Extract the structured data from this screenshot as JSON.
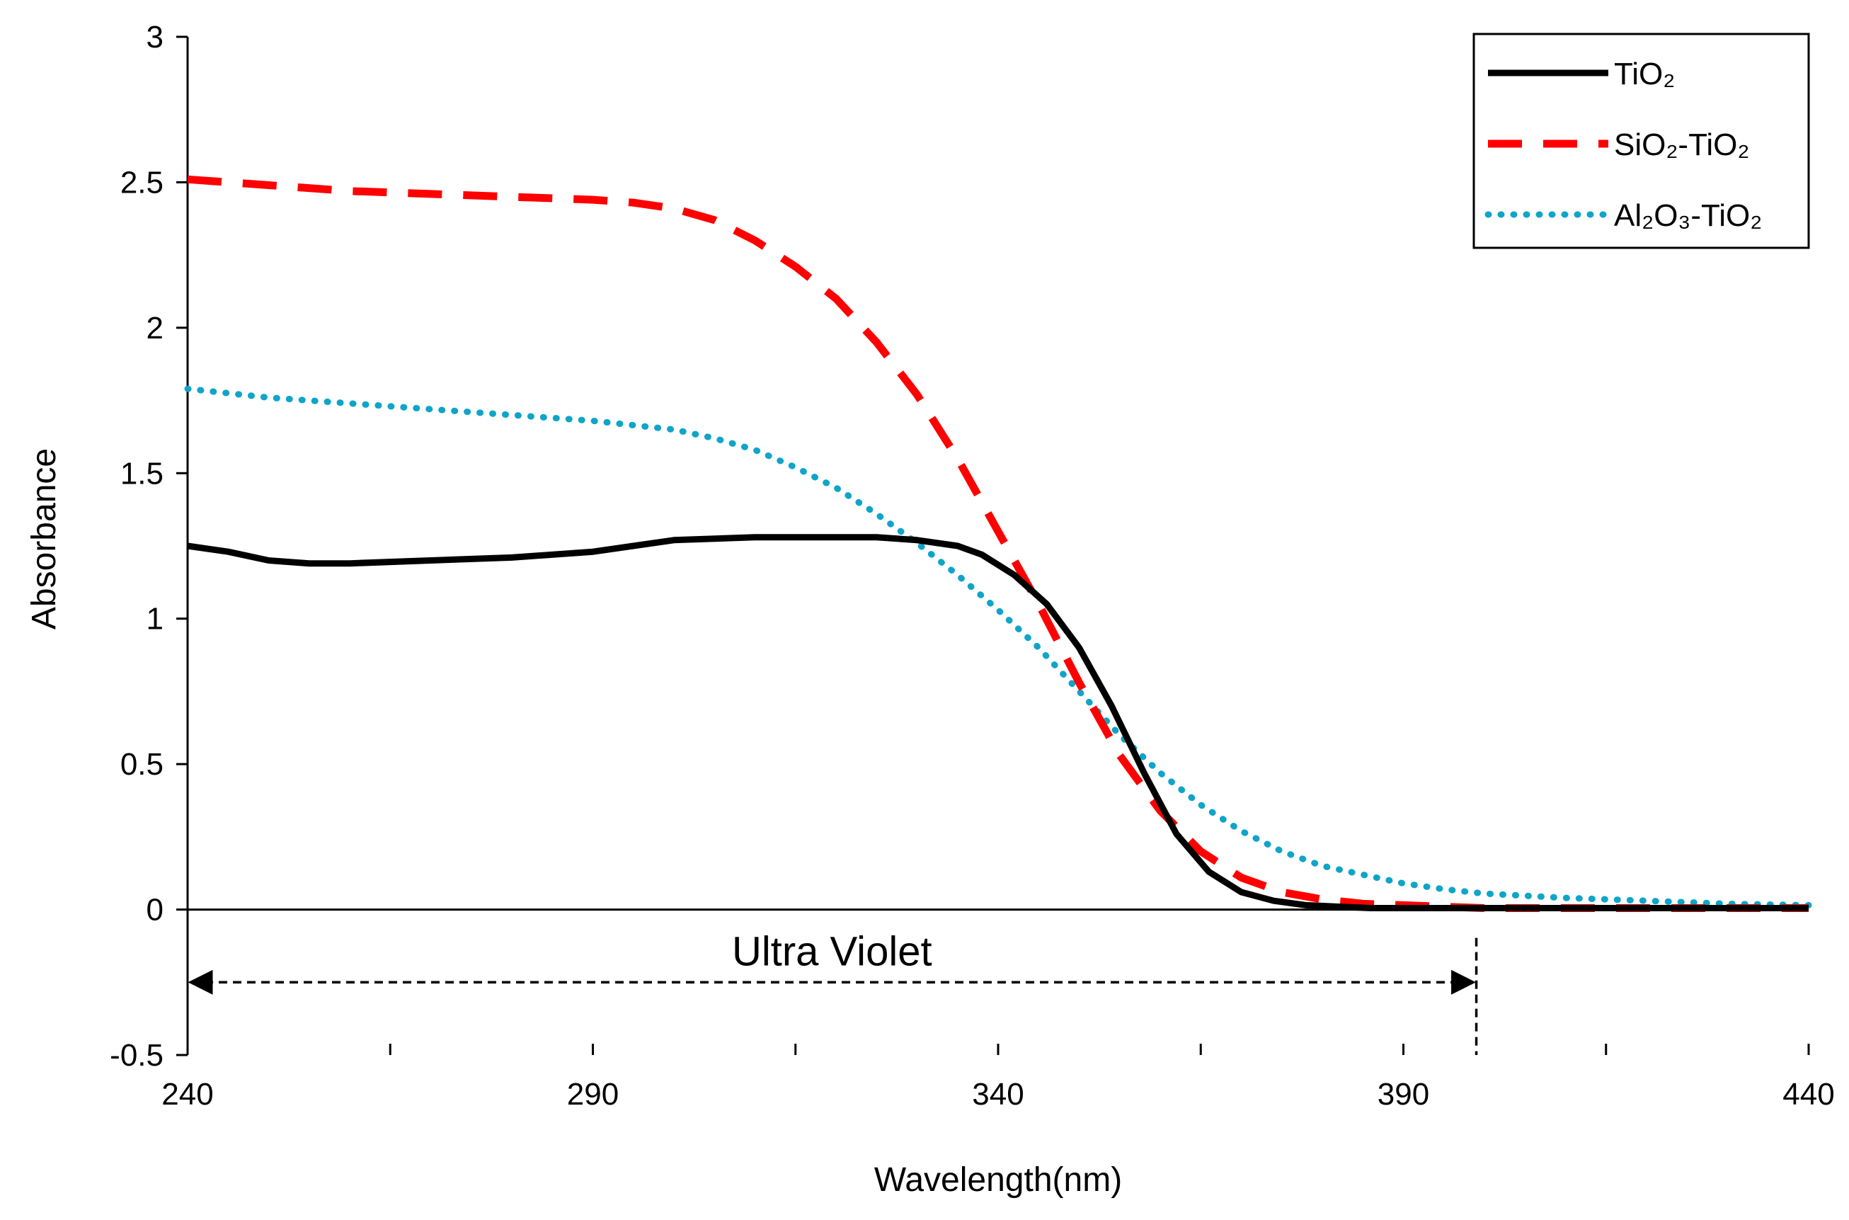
{
  "chart_data": {
    "type": "line",
    "xlabel": "Wavelength(nm)",
    "ylabel": "Absorbance",
    "xlim": [
      240,
      440
    ],
    "ylim": [
      -0.5,
      3
    ],
    "x_ticks": [
      240,
      290,
      340,
      390,
      440
    ],
    "x_minor_ticks": [
      265,
      315,
      365,
      415
    ],
    "y_ticks": [
      -0.5,
      0,
      0.5,
      1,
      1.5,
      2,
      2.5,
      3
    ],
    "y_tick_labels": [
      "-0.5",
      "0",
      "0.5",
      "1",
      "1.5",
      "2",
      "2.5",
      "3"
    ],
    "grid": false,
    "legend_position": "top-right",
    "legend": [
      "TiO₂",
      "SiO₂-TiO₂",
      "Al₂O₃-TiO₂"
    ],
    "series": [
      {
        "name": "TiO₂",
        "color": "#000000",
        "style": "solid",
        "x": [
          240,
          245,
          250,
          255,
          260,
          270,
          280,
          290,
          300,
          310,
          320,
          325,
          330,
          335,
          338,
          342,
          346,
          350,
          354,
          358,
          362,
          366,
          370,
          374,
          378,
          382,
          386,
          390,
          395,
          400,
          410,
          420,
          430,
          440
        ],
        "y": [
          1.25,
          1.23,
          1.2,
          1.19,
          1.19,
          1.2,
          1.21,
          1.23,
          1.27,
          1.28,
          1.28,
          1.28,
          1.27,
          1.25,
          1.22,
          1.15,
          1.05,
          0.9,
          0.7,
          0.47,
          0.26,
          0.13,
          0.06,
          0.03,
          0.015,
          0.01,
          0.005,
          0.005,
          0.005,
          0.005,
          0.005,
          0.005,
          0.005,
          0.005
        ]
      },
      {
        "name": "SiO₂-TiO₂",
        "color": "#ff0000",
        "style": "dashed",
        "x": [
          240,
          250,
          260,
          270,
          280,
          290,
          295,
          300,
          305,
          310,
          315,
          320,
          325,
          330,
          335,
          340,
          345,
          350,
          355,
          360,
          365,
          370,
          375,
          380,
          385,
          390,
          395,
          400,
          410,
          420,
          430,
          440
        ],
        "y": [
          2.51,
          2.49,
          2.47,
          2.46,
          2.45,
          2.44,
          2.43,
          2.41,
          2.37,
          2.3,
          2.21,
          2.1,
          1.95,
          1.77,
          1.55,
          1.3,
          1.05,
          0.78,
          0.53,
          0.34,
          0.2,
          0.11,
          0.06,
          0.035,
          0.02,
          0.015,
          0.01,
          0.005,
          0.005,
          0.005,
          0.005,
          0.005
        ]
      },
      {
        "name": "Al₂O₃-TiO₂",
        "color": "#0ea5c8",
        "style": "dotted",
        "x": [
          240,
          250,
          260,
          270,
          280,
          290,
          300,
          305,
          310,
          315,
          320,
          325,
          330,
          335,
          340,
          345,
          350,
          355,
          360,
          365,
          370,
          375,
          380,
          385,
          390,
          395,
          400,
          410,
          420,
          430,
          440
        ],
        "y": [
          1.79,
          1.76,
          1.74,
          1.72,
          1.7,
          1.68,
          1.65,
          1.62,
          1.58,
          1.52,
          1.45,
          1.36,
          1.26,
          1.15,
          1.03,
          0.9,
          0.75,
          0.6,
          0.47,
          0.36,
          0.27,
          0.2,
          0.15,
          0.12,
          0.09,
          0.07,
          0.055,
          0.04,
          0.03,
          0.02,
          0.015
        ]
      }
    ],
    "annotations": [
      {
        "text": "Ultra Violet",
        "type": "double-arrow",
        "x_from": 240,
        "x_to": 399,
        "y": -0.25,
        "marker_line_x": 399
      }
    ]
  }
}
